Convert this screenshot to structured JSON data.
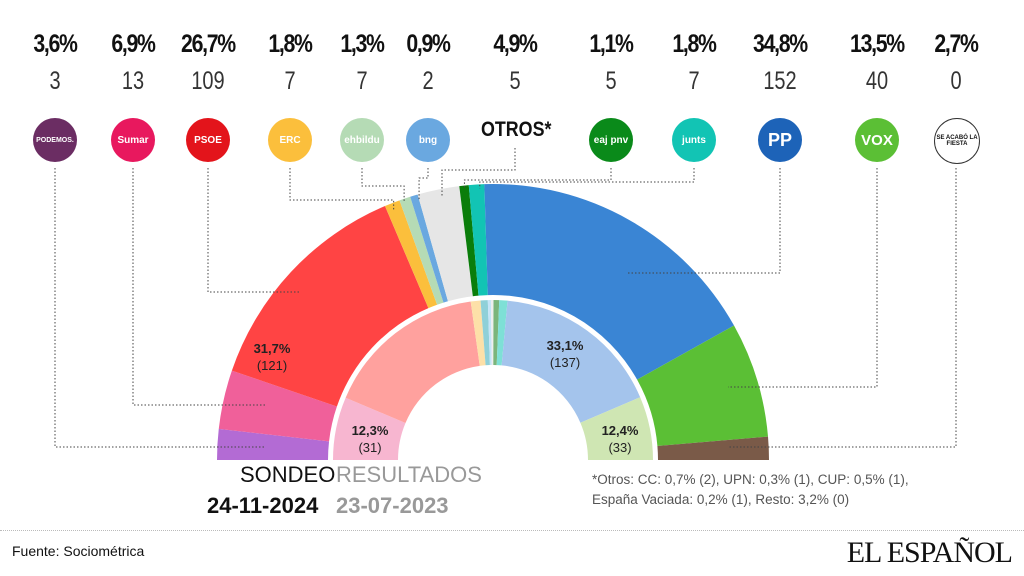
{
  "chart_data": {
    "type": "pie",
    "subtype": "hemicycle",
    "outer": {
      "label": "SONDEO",
      "date": "24-11-2024",
      "parties": [
        {
          "name": "PODEMOS",
          "pct": "3,6%",
          "value": 3.6,
          "seats": "3",
          "color": "#b36bd4",
          "logo_color": "#6b2d63"
        },
        {
          "name": "Sumar",
          "pct": "6,9%",
          "value": 6.9,
          "seats": "13",
          "color": "#f0609a",
          "logo_color": "#e8185e"
        },
        {
          "name": "PSOE",
          "pct": "26,7%",
          "value": 26.7,
          "seats": "109",
          "color": "#ff4444",
          "logo_color": "#e3141b"
        },
        {
          "name": "ERC",
          "pct": "1,8%",
          "value": 1.8,
          "seats": "7",
          "color": "#fbbf3c",
          "logo_color": "#fbbf3c"
        },
        {
          "name": "ehbildu",
          "pct": "1,3%",
          "value": 1.3,
          "seats": "7",
          "color": "#b5dbb5",
          "logo_color": "#b5dbb5"
        },
        {
          "name": "bng",
          "pct": "0,9%",
          "value": 0.9,
          "seats": "2",
          "color": "#6aa8e0",
          "logo_color": "#6aa8e0"
        },
        {
          "name": "OTROS*",
          "pct": "4,9%",
          "value": 4.9,
          "seats": "5",
          "color": "#e6e6e6",
          "logo_color": ""
        },
        {
          "name": "eaj pnv",
          "pct": "1,1%",
          "value": 1.1,
          "seats": "5",
          "color": "#0a7d0a",
          "logo_color": "#0a8a1a"
        },
        {
          "name": "junts",
          "pct": "1,8%",
          "value": 1.8,
          "seats": "7",
          "color": "#12c4b4",
          "logo_color": "#12c4b4"
        },
        {
          "name": "PP",
          "pct": "34,8%",
          "value": 34.8,
          "seats": "152",
          "color": "#3a85d4",
          "logo_color": "#1d63b8"
        },
        {
          "name": "VOX",
          "pct": "13,5%",
          "value": 13.5,
          "seats": "40",
          "color": "#5bbf35",
          "logo_color": "#5bbf35"
        },
        {
          "name": "SE ACABÓ LA FIESTA",
          "pct": "2,7%",
          "value": 2.7,
          "seats": "0",
          "color": "#7a5a48",
          "logo_color": "#ffffff"
        }
      ]
    },
    "inner": {
      "label": "RESULTADOS",
      "date": "23-07-2023",
      "segments": [
        {
          "party": "Sumar",
          "value": 12.3,
          "pct": "12,3%",
          "seats": "(31)",
          "color": "#f7b6d0"
        },
        {
          "party": "PSOE",
          "value": 31.7,
          "pct": "31,7%",
          "seats": "(121)",
          "color": "#ffa19e"
        },
        {
          "party": "ERC",
          "value": 1.9,
          "color": "#fde0a8"
        },
        {
          "party": "ehbildu",
          "value": 1.4,
          "color": "#8fd0d8"
        },
        {
          "party": "bng",
          "value": 0.6,
          "color": "#c5e4f7"
        },
        {
          "party": "OTROS",
          "value": 0.5,
          "color": "#eeeeee"
        },
        {
          "party": "eaj pnv",
          "value": 1.1,
          "color": "#7bb57b"
        },
        {
          "party": "junts",
          "value": 1.6,
          "color": "#7ee0d6"
        },
        {
          "party": "PP",
          "value": 33.1,
          "pct": "33,1%",
          "seats": "(137)",
          "color": "#a4c4ec"
        },
        {
          "party": "VOX",
          "value": 12.4,
          "pct": "12,4%",
          "seats": "(33)",
          "color": "#cfe6b3"
        }
      ]
    }
  },
  "footnote_line1": "*Otros: CC: 0,7% (2), UPN: 0,3% (1), CUP: 0,5% (1),",
  "footnote_line2": "España Vaciada: 0,2% (1), Resto: 3,2% (0)",
  "source": "Fuente: Sociométrica",
  "brand": "EL ESPAÑOL",
  "logo_texts": [
    "PODEMOS.",
    "Sumar",
    "PSOE",
    "ERC",
    "ehbildu",
    "bng",
    "OTROS*",
    "eaj pnv",
    "junts",
    "PP",
    "VOX",
    "SE ACABÓ LA FIESTA"
  ]
}
